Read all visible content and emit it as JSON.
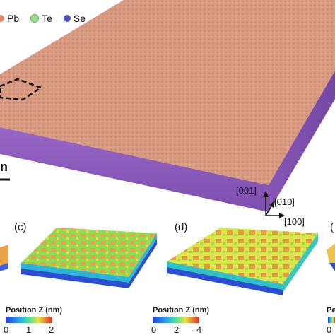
{
  "legend": [
    {
      "label": "Pb",
      "color": "#e0876b"
    },
    {
      "label": "Te",
      "color": "#9fdc8a"
    },
    {
      "label": "Se",
      "color": "#4f4fc0"
    }
  ],
  "crystal_axes": [
    "[001]",
    "[010]",
    "[100]"
  ],
  "panels": [
    {
      "label": "(c)",
      "colorbar_title": "Position Z (nm)",
      "ticks": [
        "0",
        "1",
        "2"
      ]
    },
    {
      "label": "(d)",
      "colorbar_title": "Position Z (nm)",
      "ticks": [
        "0",
        "2",
        "4"
      ]
    },
    {
      "label": "(",
      "colorbar_title": "Pe",
      "ticks": [
        "0"
      ]
    }
  ],
  "scale_bar_fragment": "n",
  "colors": {
    "film_top": "#d99a82",
    "film_side": "#8a58b8",
    "colorbar_low": "#1f3fd1",
    "colorbar_mid": "#4fe0a0",
    "colorbar_high": "#e0301f"
  }
}
